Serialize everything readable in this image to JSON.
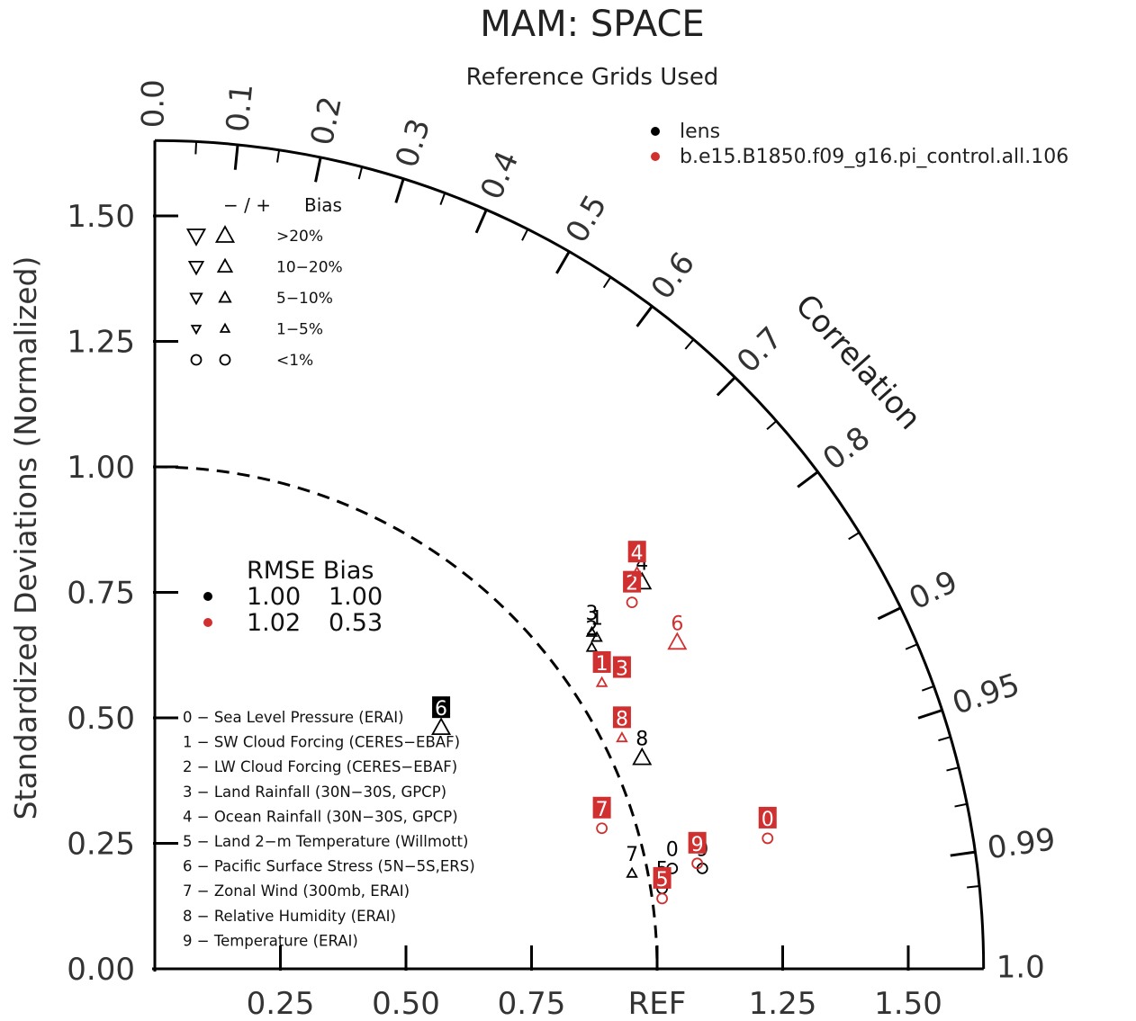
{
  "chart_data": {
    "type": "scatter",
    "title": "MAM: SPACE",
    "subtitle": "Reference Grids Used",
    "ylabel": "Standardized Deviations (Normalized)",
    "arc_label": "Correlation",
    "ylim": [
      0,
      1.65
    ],
    "x_ticks": [
      "0.25",
      "0.50",
      "0.75",
      "REF",
      "1.25",
      "1.50"
    ],
    "y_ticks": [
      "0.00",
      "0.25",
      "0.50",
      "0.75",
      "1.00",
      "1.25",
      "1.50"
    ],
    "correlation_ticks": [
      "0.0",
      "0.1",
      "0.2",
      "0.3",
      "0.4",
      "0.5",
      "0.6",
      "0.7",
      "0.8",
      "0.9",
      "0.95",
      "0.99",
      "1.0"
    ],
    "series": [
      {
        "name": "lens",
        "color": "#000000",
        "points": [
          {
            "label": "0",
            "x": 1.03,
            "y": 0.2,
            "marker": "circle"
          },
          {
            "label": "1",
            "x": 0.88,
            "y": 0.66,
            "marker": "up-small"
          },
          {
            "label": "2",
            "x": 0.87,
            "y": 0.64,
            "marker": "up-small"
          },
          {
            "label": "3",
            "x": 0.87,
            "y": 0.67,
            "marker": "up-small"
          },
          {
            "label": "4",
            "x": 0.97,
            "y": 0.77,
            "marker": "up"
          },
          {
            "label": "5",
            "x": 1.01,
            "y": 0.16,
            "marker": "circle"
          },
          {
            "label": "6",
            "x": 0.57,
            "y": 0.48,
            "marker": "up"
          },
          {
            "label": "7",
            "x": 0.95,
            "y": 0.19,
            "marker": "up-small"
          },
          {
            "label": "8",
            "x": 0.97,
            "y": 0.42,
            "marker": "up"
          },
          {
            "label": "9",
            "x": 1.09,
            "y": 0.2,
            "marker": "circle"
          }
        ]
      },
      {
        "name": "b.e15.B1850.f09_g16.pi_control.all.106",
        "color": "#d03030",
        "points": [
          {
            "label": "0",
            "x": 1.22,
            "y": 0.26,
            "marker": "circle"
          },
          {
            "label": "1",
            "x": 0.89,
            "y": 0.57,
            "marker": "up-small"
          },
          {
            "label": "2",
            "x": 0.95,
            "y": 0.73,
            "marker": "circle"
          },
          {
            "label": "3",
            "x": 0.93,
            "y": 0.56,
            "marker": "none"
          },
          {
            "label": "4",
            "x": 0.96,
            "y": 0.79,
            "marker": "up-small"
          },
          {
            "label": "5",
            "x": 1.01,
            "y": 0.14,
            "marker": "circle"
          },
          {
            "label": "6",
            "x": 1.04,
            "y": 0.65,
            "marker": "up"
          },
          {
            "label": "7",
            "x": 0.89,
            "y": 0.28,
            "marker": "circle"
          },
          {
            "label": "8",
            "x": 0.93,
            "y": 0.46,
            "marker": "up-small"
          },
          {
            "label": "9",
            "x": 1.08,
            "y": 0.21,
            "marker": "circle"
          }
        ]
      }
    ],
    "bias_legend": {
      "header_signs": "− / +",
      "header_label": "Bias",
      "rows": [
        ">20%",
        "10−20%",
        "5−10%",
        "1−5%",
        "<1%"
      ]
    },
    "rmse_legend": {
      "header": "RMSE Bias",
      "rows": [
        {
          "rmse": "1.00",
          "bias": "1.00",
          "color": "#000000"
        },
        {
          "rmse": "1.02",
          "bias": "0.53",
          "color": "#d03030"
        }
      ]
    },
    "variables": [
      "0 − Sea Level Pressure (ERAI)",
      "1 − SW Cloud Forcing (CERES−EBAF)",
      "2 − LW Cloud Forcing (CERES−EBAF)",
      "3 − Land Rainfall (30N−30S, GPCP)",
      "4 − Ocean Rainfall (30N−30S, GPCP)",
      "5 − Land 2−m Temperature (Willmott)",
      "6 − Pacific Surface Stress (5N−5S,ERS)",
      "7 − Zonal Wind (300mb, ERAI)",
      "8 − Relative Humidity (ERAI)",
      "9 − Temperature (ERAI)"
    ]
  }
}
